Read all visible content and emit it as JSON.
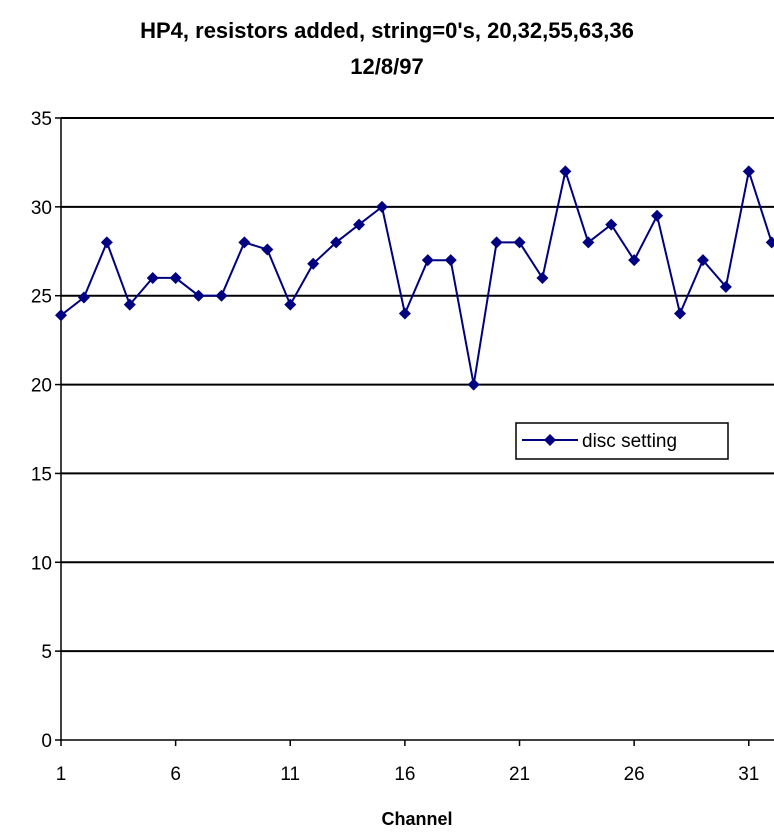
{
  "chart_data": {
    "type": "line",
    "title_line1": "HP4, resistors added, string=0's, 20,32,55,63,36",
    "title_line2": "12/8/97",
    "xlabel": "Channel",
    "ylabel": "",
    "ylim": [
      0,
      35
    ],
    "yticks": [
      0,
      5,
      10,
      15,
      20,
      25,
      30,
      35
    ],
    "xticks": [
      1,
      6,
      11,
      16,
      21,
      26,
      31
    ],
    "grid": "horizontal major gridlines",
    "legend_position": "right-middle",
    "colors": {
      "series": "#000080",
      "grid": "#000000",
      "axis": "#000000"
    },
    "series": [
      {
        "name": "disc setting",
        "x": [
          1,
          2,
          3,
          4,
          5,
          6,
          7,
          8,
          9,
          10,
          11,
          12,
          13,
          14,
          15,
          16,
          17,
          18,
          19,
          20,
          21,
          22,
          23,
          24,
          25,
          26,
          27,
          28,
          29,
          30,
          31,
          32
        ],
        "values": [
          23.9,
          24.9,
          28,
          24.5,
          26,
          26,
          25,
          25,
          28,
          27.6,
          24.5,
          26.8,
          28,
          29,
          30,
          24,
          27,
          27,
          20,
          28,
          28,
          26,
          32,
          28,
          29,
          27,
          29.5,
          24,
          27,
          25.5,
          32,
          28
        ]
      }
    ]
  }
}
